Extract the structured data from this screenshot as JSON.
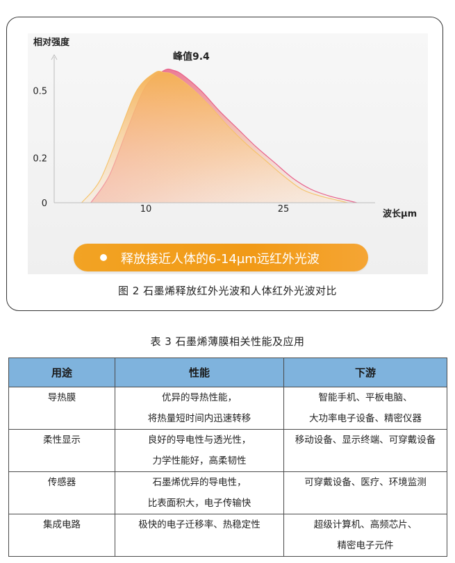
{
  "figure": {
    "chart_data": {
      "type": "area",
      "ylabel": "相对强度",
      "xlabel": "波长μm",
      "x_ticks": [
        "10",
        "25"
      ],
      "y_ticks": [
        "0",
        "0.2",
        "0.5"
      ],
      "xlim": [
        0,
        35
      ],
      "ylim": [
        0,
        0.65
      ],
      "peak_label": "峰值9.4",
      "series": [
        {
          "color": "#f5c469",
          "x": [
            3,
            5,
            7,
            9,
            11,
            12,
            13,
            15,
            17,
            19,
            21,
            23,
            25,
            27,
            29,
            31,
            32
          ],
          "y": [
            0,
            0.1,
            0.3,
            0.5,
            0.58,
            0.58,
            0.57,
            0.51,
            0.43,
            0.34,
            0.26,
            0.19,
            0.12,
            0.06,
            0.03,
            0.01,
            0
          ]
        },
        {
          "color": "#e8608a",
          "x": [
            4,
            6,
            8,
            10,
            12,
            13,
            14,
            16,
            18,
            20,
            22,
            24,
            26,
            28,
            30,
            32,
            33
          ],
          "y": [
            0,
            0.12,
            0.33,
            0.52,
            0.59,
            0.59,
            0.57,
            0.5,
            0.41,
            0.33,
            0.25,
            0.18,
            0.11,
            0.06,
            0.03,
            0.01,
            0
          ]
        }
      ]
    },
    "legend_text": "释放接近人体的6-14μm远红外光波",
    "caption": "图 2   石墨烯释放红外光波和人体红外光波对比"
  },
  "table": {
    "title": "表 3   石墨烯薄膜相关性能及应用",
    "headers": [
      "用途",
      "性能",
      "下游"
    ],
    "rows": [
      {
        "use": "导热膜",
        "perf": [
          "优异的导热性能，",
          "将热量短时间内迅速转移"
        ],
        "down": [
          "智能手机、平板电脑、",
          "大功率电子设备、精密仪器"
        ]
      },
      {
        "use": "柔性显示",
        "perf": [
          "良好的导电性与透光性，",
          "力学性能好，高柔韧性"
        ],
        "down": [
          "移动设备、显示终端、可穿戴设备",
          ""
        ]
      },
      {
        "use": "传感器",
        "perf": [
          "石墨烯优异的导电性，",
          "比表面积大，电子传输快"
        ],
        "down": [
          "可穿戴设备、医疗、环境监测",
          ""
        ]
      },
      {
        "use": "集成电路",
        "perf": [
          "极快的电子迁移率、热稳定性",
          ""
        ],
        "down": [
          "超级计算机、高频芯片、",
          "精密电子元件"
        ]
      }
    ]
  }
}
